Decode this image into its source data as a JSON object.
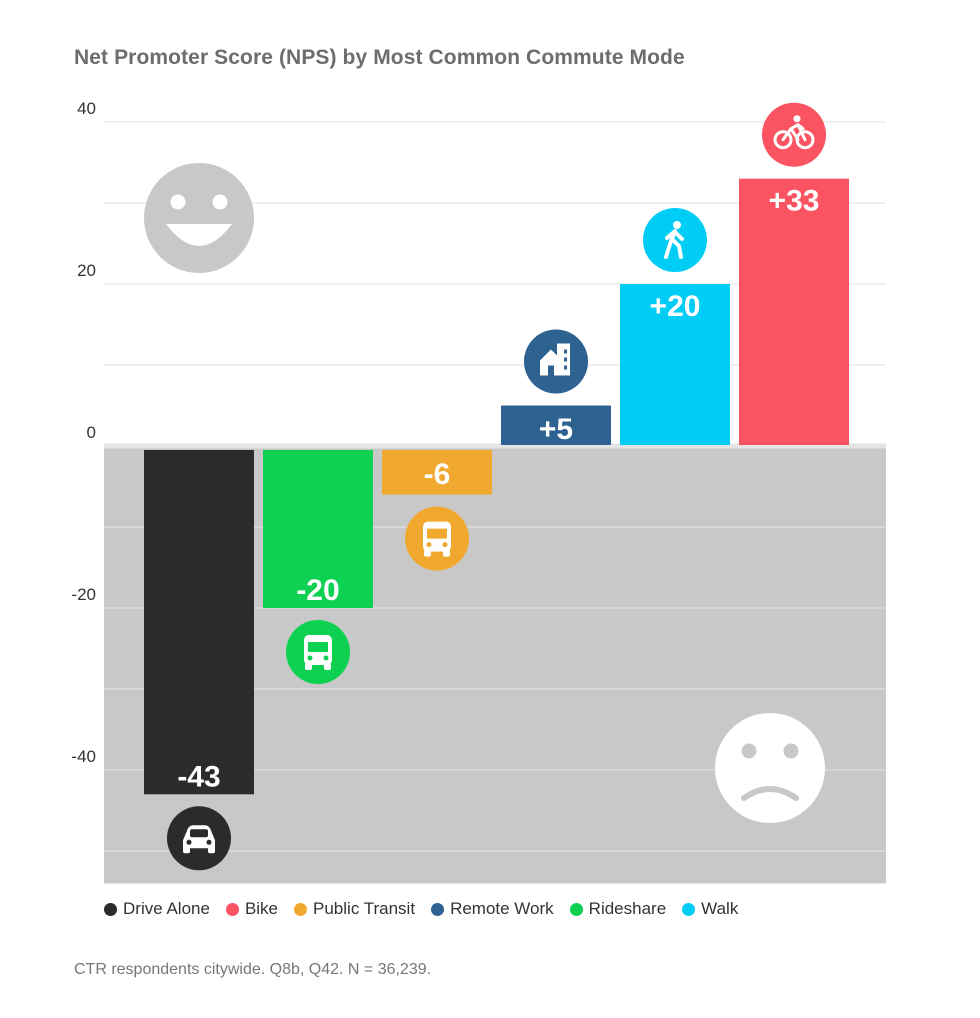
{
  "chart_data": {
    "type": "bar",
    "title": "Net Promoter Score (NPS) by Most Common Commute Mode",
    "xlabel": "",
    "ylabel": "",
    "ylim": [
      -54,
      40
    ],
    "yticks": [
      40,
      20,
      0,
      -20,
      -40
    ],
    "grid": true,
    "legend_position": "bottom",
    "categories": [
      "Drive Alone",
      "Rideshare",
      "Public Transit",
      "Remote Work",
      "Walk",
      "Bike"
    ],
    "values": [
      -43,
      -20,
      -6,
      5,
      20,
      33
    ],
    "value_labels": [
      "-43",
      "-20",
      "-6",
      "+5",
      "+20",
      "+33"
    ],
    "colors": [
      "#2b2b2b",
      "#0ed151",
      "#f0a92e",
      "#2e6290",
      "#00cdf5",
      "#fa5462"
    ],
    "icons": [
      "car-icon",
      "van-icon",
      "bus-icon",
      "house-icon",
      "walk-icon",
      "bike-icon"
    ],
    "legend": [
      {
        "label": "Drive Alone",
        "color": "#2b2b2b"
      },
      {
        "label": "Bike",
        "color": "#fa5462"
      },
      {
        "label": "Public Transit",
        "color": "#f0a92e"
      },
      {
        "label": "Remote Work",
        "color": "#2e6290"
      },
      {
        "label": "Rideshare",
        "color": "#0ed151"
      },
      {
        "label": "Walk",
        "color": "#00cdf5"
      }
    ],
    "annotations": [
      "happy-face-icon",
      "sad-face-icon"
    ]
  },
  "footnote": "CTR respondents citywide. Q8b, Q42. N = 36,239."
}
